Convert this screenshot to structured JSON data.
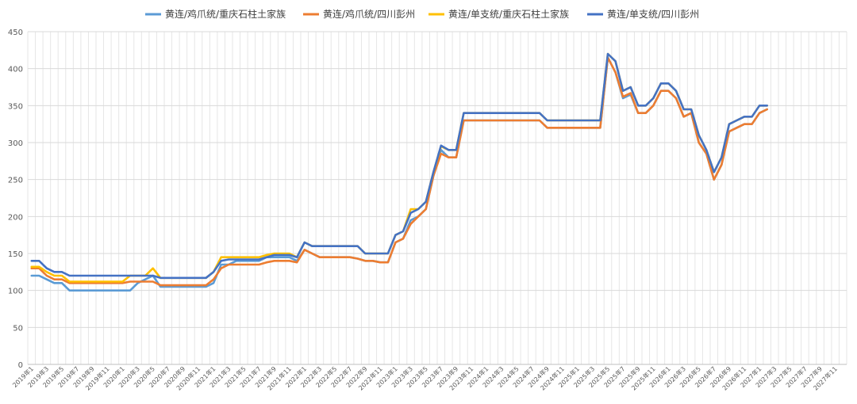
{
  "chart_data": {
    "type": "line",
    "title": "",
    "xlabel": "",
    "ylabel": "",
    "ylim": [
      0,
      450
    ],
    "yticks": [
      0,
      50,
      100,
      150,
      200,
      250,
      300,
      350,
      400,
      450
    ],
    "grid": true,
    "legend_position": "top",
    "x_start": "2019年1",
    "x_tick_labels": [
      "2019年1",
      "2019年3",
      "2019年5",
      "2019年7",
      "2019年9",
      "2019年11",
      "2020年1",
      "2020年3",
      "2020年5",
      "2020年7",
      "2020年9",
      "2020年11",
      "2021年1",
      "2021年3",
      "2021年5",
      "2021年7",
      "2021年9",
      "2021年11",
      "2022年1",
      "2022年3",
      "2022年5",
      "2022年7",
      "2022年9",
      "2022年11",
      "2023年1",
      "2023年3",
      "2023年5",
      "2023年7",
      "2023年9",
      "2023年11",
      "2024年1",
      "2024年3",
      "2024年5",
      "2024年7",
      "2024年9",
      "2024年11",
      "2025年1",
      "2025年3",
      "2025年5",
      "2025年7",
      "2025年9",
      "2025年11",
      "2026年1",
      "2026年3",
      "2026年5",
      "2026年7",
      "2026年9",
      "2026年11",
      "2027年1",
      "2027年3",
      "2027年5",
      "2027年7",
      "2027年9",
      "2027年11"
    ],
    "series": [
      {
        "name": "黄连/鸡爪统/重庆石柱土家族",
        "color": "#5B9BD5",
        "values": [
          120,
          120,
          115,
          110,
          110,
          100,
          100,
          100,
          100,
          100,
          100,
          100,
          100,
          100,
          110,
          115,
          120,
          105,
          105,
          105,
          105,
          105,
          105,
          105,
          110,
          135,
          135,
          140,
          140,
          140,
          140,
          145,
          145,
          145,
          145,
          140,
          155,
          150,
          145,
          145,
          145,
          145,
          145,
          143,
          140,
          140,
          138,
          138,
          165,
          170,
          195,
          200,
          210,
          255,
          290,
          280,
          280,
          330,
          330,
          330,
          330,
          330,
          330,
          330,
          330,
          330,
          330,
          330,
          320,
          320,
          320,
          320,
          320,
          320,
          320,
          320,
          415,
          395,
          360,
          365,
          340,
          340,
          350,
          370,
          370,
          360,
          335,
          340,
          300,
          285,
          250,
          270,
          315,
          320,
          325,
          325,
          340,
          345
        ]
      },
      {
        "name": "黄连/鸡爪统/四川彭州",
        "color": "#ED7D31",
        "values": [
          130,
          130,
          120,
          115,
          115,
          110,
          110,
          110,
          110,
          110,
          110,
          110,
          110,
          112,
          112,
          112,
          112,
          107,
          107,
          107,
          107,
          107,
          107,
          107,
          115,
          130,
          135,
          135,
          135,
          135,
          135,
          138,
          140,
          140,
          140,
          138,
          155,
          150,
          145,
          145,
          145,
          145,
          145,
          143,
          140,
          140,
          138,
          138,
          165,
          170,
          190,
          200,
          210,
          255,
          285,
          280,
          280,
          330,
          330,
          330,
          330,
          330,
          330,
          330,
          330,
          330,
          330,
          330,
          320,
          320,
          320,
          320,
          320,
          320,
          320,
          320,
          415,
          395,
          362,
          367,
          340,
          340,
          350,
          370,
          370,
          360,
          335,
          340,
          300,
          285,
          250,
          270,
          315,
          320,
          325,
          325,
          340,
          345
        ]
      },
      {
        "name": "黄连/单支统/重庆石柱土家族",
        "color": "#FFC000",
        "values": [
          132,
          132,
          125,
          120,
          120,
          112,
          112,
          112,
          112,
          112,
          112,
          112,
          112,
          120,
          120,
          120,
          130,
          117,
          117,
          117,
          117,
          117,
          117,
          117,
          125,
          145,
          145,
          145,
          145,
          145,
          145,
          148,
          150,
          150,
          150,
          145,
          165,
          160,
          160,
          160,
          160,
          160,
          160,
          160,
          150,
          150,
          150,
          150,
          175,
          180,
          210,
          210,
          220,
          260,
          295,
          290,
          290,
          340,
          340,
          340,
          340,
          340,
          340,
          340,
          340,
          340,
          340,
          340,
          330,
          330,
          330,
          330,
          330,
          330,
          330,
          330,
          420,
          410,
          370,
          375,
          350,
          350,
          360,
          380,
          380,
          370,
          345,
          345,
          310,
          290,
          260,
          280,
          325,
          330,
          335,
          335,
          350,
          350
        ]
      },
      {
        "name": "黄连/单支统/四川彭州",
        "color": "#4472C4",
        "values": [
          140,
          140,
          130,
          125,
          125,
          120,
          120,
          120,
          120,
          120,
          120,
          120,
          120,
          120,
          120,
          120,
          120,
          117,
          117,
          117,
          117,
          117,
          117,
          117,
          125,
          140,
          142,
          142,
          142,
          142,
          142,
          145,
          148,
          148,
          148,
          145,
          165,
          160,
          160,
          160,
          160,
          160,
          160,
          160,
          150,
          150,
          150,
          150,
          175,
          180,
          205,
          210,
          220,
          260,
          296,
          290,
          290,
          340,
          340,
          340,
          340,
          340,
          340,
          340,
          340,
          340,
          340,
          340,
          330,
          330,
          330,
          330,
          330,
          330,
          330,
          330,
          420,
          410,
          370,
          375,
          350,
          350,
          360,
          380,
          380,
          370,
          345,
          345,
          310,
          290,
          260,
          280,
          325,
          330,
          335,
          335,
          350,
          350
        ]
      }
    ]
  }
}
